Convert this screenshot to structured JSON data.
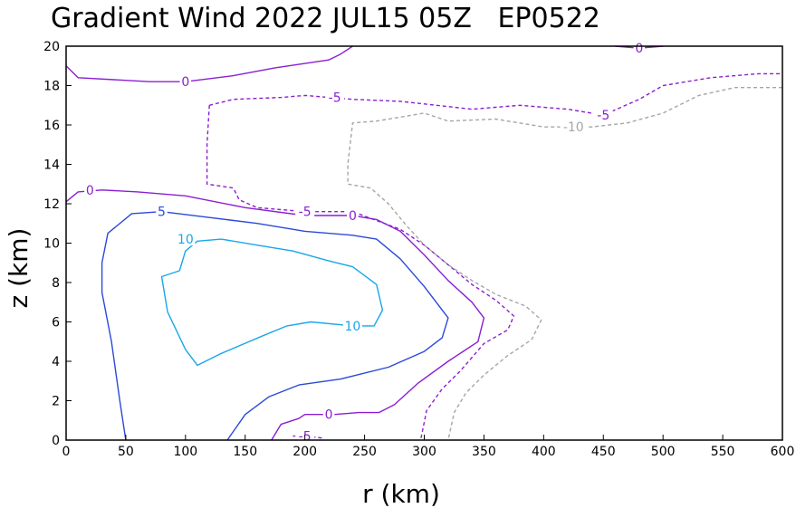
{
  "chart_data": {
    "type": "contour",
    "title": "Gradient Wind 2022 JUL15 05Z   EP0522",
    "xlabel": "r (km)",
    "ylabel": "z (km)",
    "xlim": [
      0,
      600
    ],
    "ylim": [
      0,
      20
    ],
    "xticks": [
      0,
      50,
      100,
      150,
      200,
      250,
      300,
      350,
      400,
      450,
      500,
      550,
      600
    ],
    "yticks": [
      0,
      2,
      4,
      6,
      8,
      10,
      12,
      14,
      16,
      18,
      20
    ],
    "levels": [
      {
        "value": 10,
        "color": "#1aa6e8",
        "dashed": false,
        "paths": [
          [
            [
              95,
              8.6
            ],
            [
              100,
              9.6
            ],
            [
              110,
              10.1
            ],
            [
              130,
              10.2
            ],
            [
              160,
              9.9
            ],
            [
              190,
              9.6
            ],
            [
              220,
              9.1
            ],
            [
              240,
              8.8
            ],
            [
              260,
              7.9
            ],
            [
              265,
              6.6
            ],
            [
              258,
              5.8
            ],
            [
              240,
              5.8
            ],
            [
              205,
              6.0
            ],
            [
              185,
              5.8
            ],
            [
              165,
              5.3
            ],
            [
              130,
              4.4
            ],
            [
              110,
              3.8
            ],
            [
              100,
              4.6
            ],
            [
              85,
              6.5
            ],
            [
              80,
              8.3
            ],
            [
              95,
              8.6
            ]
          ]
        ],
        "labels": [
          {
            "text": "10",
            "x": 100,
            "y": 10.2
          },
          {
            "text": "10",
            "x": 240,
            "y": 5.8
          }
        ]
      },
      {
        "value": 5,
        "color": "#2b49d9",
        "dashed": false,
        "paths": [
          [
            [
              50,
              0
            ],
            [
              45,
              2
            ],
            [
              38,
              5
            ],
            [
              30,
              7.5
            ],
            [
              30,
              9
            ],
            [
              35,
              10.5
            ],
            [
              55,
              11.5
            ],
            [
              80,
              11.6
            ],
            [
              120,
              11.3
            ],
            [
              160,
              11.0
            ],
            [
              200,
              10.6
            ],
            [
              240,
              10.4
            ],
            [
              260,
              10.2
            ],
            [
              280,
              9.2
            ],
            [
              300,
              7.8
            ],
            [
              320,
              6.2
            ],
            [
              315,
              5.2
            ],
            [
              300,
              4.5
            ],
            [
              270,
              3.7
            ],
            [
              230,
              3.1
            ],
            [
              195,
              2.8
            ],
            [
              170,
              2.2
            ],
            [
              150,
              1.3
            ],
            [
              135,
              0
            ]
          ]
        ],
        "labels": [
          {
            "text": "5",
            "x": 80,
            "y": 11.6
          }
        ]
      },
      {
        "value": 0,
        "color": "#8a1fd1",
        "dashed": false,
        "paths": [
          [
            [
              0,
              12.1
            ],
            [
              10,
              12.6
            ],
            [
              30,
              12.7
            ],
            [
              60,
              12.6
            ],
            [
              100,
              12.4
            ],
            [
              150,
              11.8
            ],
            [
              200,
              11.4
            ],
            [
              240,
              11.4
            ],
            [
              260,
              11.2
            ],
            [
              280,
              10.6
            ],
            [
              300,
              9.4
            ],
            [
              320,
              8.1
            ],
            [
              340,
              7.0
            ],
            [
              350,
              6.2
            ],
            [
              345,
              5.0
            ],
            [
              320,
              4.0
            ],
            [
              295,
              2.9
            ],
            [
              275,
              1.8
            ],
            [
              262,
              1.4
            ],
            [
              245,
              1.4
            ],
            [
              225,
              1.3
            ],
            [
              210,
              1.3
            ],
            [
              200,
              1.3
            ],
            [
              195,
              1.1
            ],
            [
              180,
              0.8
            ],
            [
              172,
              0
            ]
          ],
          [
            [
              0,
              19.0
            ],
            [
              10,
              18.4
            ],
            [
              40,
              18.3
            ],
            [
              70,
              18.2
            ],
            [
              100,
              18.2
            ],
            [
              140,
              18.5
            ],
            [
              175,
              18.9
            ],
            [
              220,
              19.3
            ],
            [
              230,
              19.6
            ],
            [
              240,
              20.0
            ]
          ],
          [
            [
              460,
              20.0
            ],
            [
              480,
              19.9
            ],
            [
              500,
              20.0
            ]
          ]
        ],
        "labels": [
          {
            "text": "0",
            "x": 20,
            "y": 12.7
          },
          {
            "text": "0",
            "x": 240,
            "y": 11.4
          },
          {
            "text": "0",
            "x": 220,
            "y": 1.3
          },
          {
            "text": "0",
            "x": 100,
            "y": 18.2
          },
          {
            "text": "0",
            "x": 480,
            "y": 19.9
          }
        ]
      },
      {
        "value": -5,
        "color": "#8a1fd1",
        "dashed": true,
        "paths": [
          [
            [
              120,
              17.0
            ],
            [
              140,
              17.3
            ],
            [
              180,
              17.4
            ],
            [
              200,
              17.5
            ],
            [
              240,
              17.3
            ],
            [
              280,
              17.2
            ],
            [
              340,
              16.8
            ],
            [
              380,
              17.0
            ],
            [
              420,
              16.8
            ],
            [
              450,
              16.5
            ],
            [
              480,
              17.3
            ],
            [
              500,
              18.0
            ],
            [
              540,
              18.4
            ],
            [
              580,
              18.6
            ],
            [
              600,
              18.6
            ]
          ],
          [
            [
              120,
              17.0
            ],
            [
              118,
              15.0
            ],
            [
              118,
              13.0
            ],
            [
              140,
              12.8
            ],
            [
              145,
              12.2
            ],
            [
              160,
              11.8
            ],
            [
              200,
              11.6
            ],
            [
              240,
              11.6
            ],
            [
              280,
              10.7
            ],
            [
              300,
              9.9
            ],
            [
              320,
              8.9
            ],
            [
              340,
              7.9
            ],
            [
              360,
              7.1
            ],
            [
              375,
              6.3
            ],
            [
              370,
              5.6
            ],
            [
              350,
              4.9
            ],
            [
              330,
              3.5
            ],
            [
              315,
              2.6
            ],
            [
              302,
              1.5
            ],
            [
              297,
              0
            ]
          ],
          [
            [
              190,
              0.2
            ],
            [
              200,
              0.2
            ],
            [
              215,
              0.1
            ]
          ]
        ],
        "labels": [
          {
            "text": "-5",
            "x": 225,
            "y": 17.4
          },
          {
            "text": "-5",
            "x": 200,
            "y": 11.6
          },
          {
            "text": "-5",
            "x": 450,
            "y": 16.5
          },
          {
            "text": "-5",
            "x": 200,
            "y": 0.2
          }
        ]
      },
      {
        "value": -10,
        "color": "#a6a6a6",
        "dashed": true,
        "paths": [
          [
            [
              600,
              17.9
            ],
            [
              560,
              17.9
            ],
            [
              530,
              17.5
            ],
            [
              500,
              16.6
            ],
            [
              470,
              16.1
            ],
            [
              440,
              15.9
            ],
            [
              400,
              15.9
            ],
            [
              360,
              16.3
            ],
            [
              320,
              16.2
            ],
            [
              300,
              16.6
            ],
            [
              260,
              16.2
            ],
            [
              240,
              16.1
            ],
            [
              236,
              14.0
            ],
            [
              236,
              13.0
            ],
            [
              255,
              12.8
            ],
            [
              270,
              12.0
            ],
            [
              285,
              10.9
            ],
            [
              300,
              9.9
            ],
            [
              320,
              8.9
            ],
            [
              340,
              8.1
            ],
            [
              360,
              7.4
            ],
            [
              385,
              6.8
            ],
            [
              398,
              6.1
            ],
            [
              390,
              5.1
            ],
            [
              370,
              4.3
            ],
            [
              350,
              3.3
            ],
            [
              335,
              2.4
            ],
            [
              325,
              1.4
            ],
            [
              320,
              0
            ]
          ]
        ],
        "labels": [
          {
            "text": "-10",
            "x": 425,
            "y": 15.9
          }
        ]
      }
    ]
  }
}
